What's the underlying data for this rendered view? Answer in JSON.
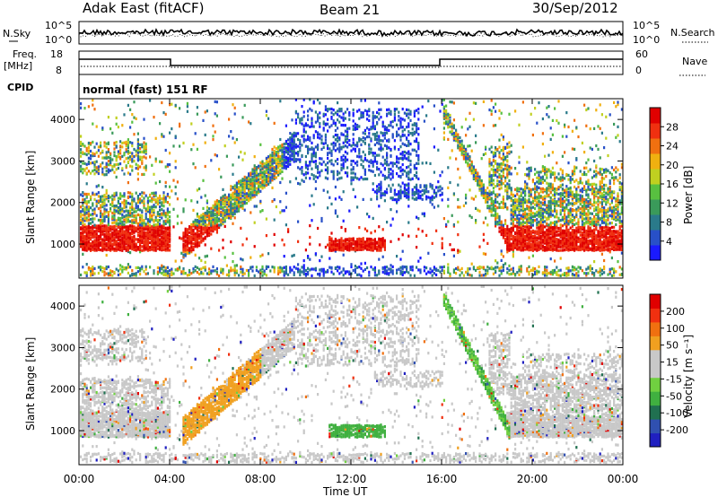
{
  "header": {
    "site": "Adak East (fitACF)",
    "beam": "Beam 21",
    "date": "30/Sep/2012"
  },
  "noise_panel": {
    "left_label": "N.Sky",
    "right_label": "N.Search",
    "left_ticks": [
      "10^5",
      "10^0"
    ],
    "right_ticks": [
      "10^5",
      "10^0"
    ]
  },
  "freq_panel": {
    "left_label_1": "Freq.",
    "left_label_2": "[MHz]",
    "right_label": "Nave",
    "left_ticks": [
      "18",
      "8"
    ],
    "right_ticks": [
      "60",
      "0"
    ],
    "cpid_label": "CPID",
    "cpid_value": "normal (fast) 151 RF"
  },
  "colors": {
    "power_scale": [
      "#1a1aff",
      "#2850c8",
      "#2a7a8a",
      "#3a9a5a",
      "#58c040",
      "#c0d020",
      "#f0b010",
      "#f07010",
      "#f03010",
      "#e00000"
    ],
    "velocity_scale": [
      "#2020c0",
      "#3050b0",
      "#207050",
      "#40b040",
      "#70d040",
      "#c8c8c8",
      "#c8c8c8",
      "#f0a020",
      "#f07010",
      "#f03010",
      "#e00000"
    ]
  },
  "chart_data": [
    {
      "type": "heatmap",
      "title": "Power",
      "xlabel": "Time UT",
      "ylabel": "Slant Range [km]",
      "x_ticks": [
        "00:00",
        "04:00",
        "08:00",
        "12:00",
        "16:00",
        "20:00",
        "00:00"
      ],
      "y_ticks": [
        "1000",
        "2000",
        "3000",
        "4000"
      ],
      "ylim": [
        180,
        4500
      ],
      "colorbar": {
        "label": "Power [dB]",
        "ticks": [
          "28",
          "24",
          "20",
          "16",
          "12",
          "8",
          "4"
        ],
        "range": [
          0,
          32
        ]
      }
    },
    {
      "type": "heatmap",
      "title": "Velocity",
      "xlabel": "Time UT",
      "ylabel": "Slant Range [km]",
      "x_ticks": [
        "00:00",
        "04:00",
        "08:00",
        "12:00",
        "16:00",
        "20:00",
        "00:00"
      ],
      "y_ticks": [
        "1000",
        "2000",
        "3000",
        "4000"
      ],
      "ylim": [
        180,
        4500
      ],
      "colorbar": {
        "label": "Velocity [m s⁻¹]",
        "ticks": [
          "200",
          "100",
          "50",
          "15",
          "-15",
          "-50",
          "-100",
          "-200"
        ],
        "range": [
          -250,
          250
        ]
      }
    }
  ]
}
